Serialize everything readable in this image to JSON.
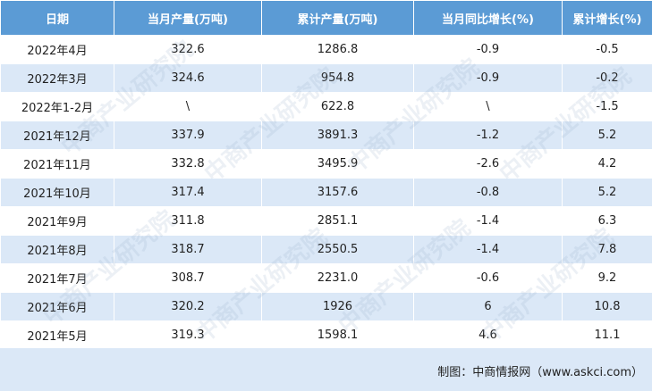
{
  "table": {
    "header": [
      "日期",
      "当月产量(万吨)",
      "累计产量(万吨)",
      "当月同比增长(%)",
      "累计增长(%)"
    ],
    "rows": [
      [
        "2022年4月",
        "322.6",
        "1286.8",
        "-0.9",
        "-0.5"
      ],
      [
        "2022年3月",
        "324.6",
        "954.8",
        "-0.9",
        "-0.2"
      ],
      [
        "2022年1-2月",
        "\\",
        "622.8",
        "\\",
        "-1.5"
      ],
      [
        "2021年12月",
        "337.9",
        "3891.3",
        "-1.2",
        "5.2"
      ],
      [
        "2021年11月",
        "332.8",
        "3495.9",
        "-2.6",
        "4.2"
      ],
      [
        "2021年10月",
        "317.4",
        "3157.6",
        "-0.8",
        "5.2"
      ],
      [
        "2021年9月",
        "311.8",
        "2851.1",
        "-1.4",
        "6.3"
      ],
      [
        "2021年8月",
        "318.7",
        "2550.5",
        "-1.4",
        "7.8"
      ],
      [
        "2021年7月",
        "308.7",
        "2231.0",
        "-0.6",
        "9.2"
      ],
      [
        "2021年6月",
        "320.2",
        "1926",
        "6",
        "10.8"
      ],
      [
        "2021年5月",
        "319.3",
        "1598.1",
        "4.6",
        "11.1"
      ]
    ],
    "source": "制图：中商情报网（www.askci.com）",
    "watermark": "中商产业研究院"
  }
}
